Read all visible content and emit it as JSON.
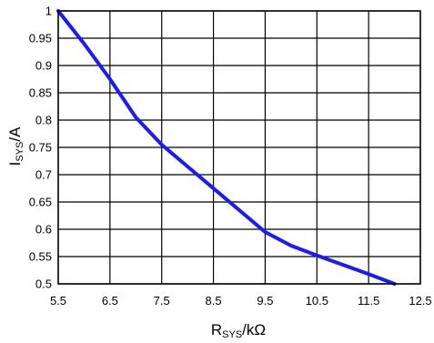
{
  "chart_data": {
    "type": "line",
    "xlabel": {
      "main": "R",
      "sub": "SYS",
      "suffix": "/kΩ"
    },
    "ylabel": {
      "main": "I",
      "sub": "SYS",
      "suffix": "/A"
    },
    "xlim": [
      5.5,
      12.5
    ],
    "ylim": [
      0.5,
      1.0
    ],
    "xticks": [
      "5.5",
      "6.5",
      "7.5",
      "8.5",
      "9.5",
      "10.5",
      "11.5",
      "12.5"
    ],
    "yticks": [
      "1",
      "0.95",
      "0.9",
      "0.85",
      "0.8",
      "0.75",
      "0.7",
      "0.65",
      "0.6",
      "0.55",
      "0.5"
    ],
    "grid": true,
    "series": [
      {
        "color": "#1a1aff",
        "x": [
          5.5,
          6.0,
          6.5,
          7.0,
          7.5,
          8.0,
          8.5,
          9.0,
          9.5,
          10.0,
          10.5,
          11.0,
          11.5,
          12.0
        ],
        "y": [
          1.0,
          0.94,
          0.875,
          0.805,
          0.755,
          0.715,
          0.675,
          0.635,
          0.595,
          0.57,
          0.552,
          0.535,
          0.518,
          0.5
        ]
      }
    ]
  }
}
